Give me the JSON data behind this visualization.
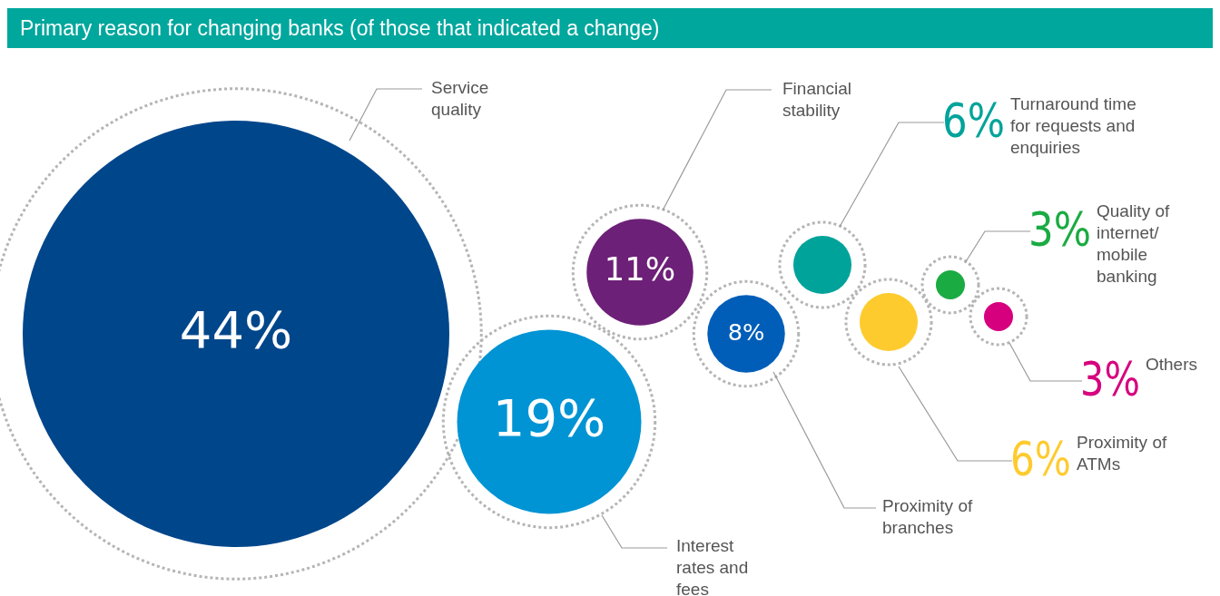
{
  "chart_data": {
    "type": "other",
    "title": "Primary reason for changing banks (of those that indicated a change)",
    "categories": [
      "Service quality",
      "Interest rates and fees",
      "Financial stability",
      "Proximity of branches",
      "Turnaround time for requests and enquiries",
      "Proximity of ATMs",
      "Quality of internet/ mobile banking",
      "Others"
    ],
    "values": [
      44,
      19,
      11,
      8,
      6,
      6,
      3,
      3
    ],
    "value_labels": [
      "44%",
      "19%",
      "11%",
      "8%",
      "6%",
      "6%",
      "3%",
      "3%"
    ],
    "colors": [
      "#00468b",
      "#0094d4",
      "#6d2077",
      "#005eb8",
      "#00a39a",
      "#fecb2f",
      "#1aab42",
      "#d6007f"
    ]
  }
}
